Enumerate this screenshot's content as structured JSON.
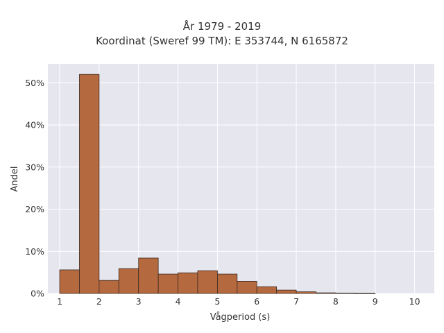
{
  "chart_data": {
    "type": "bar",
    "title": "År 1979 - 2019",
    "subtitle": "Koordinat (Sweref 99 TM): E 353744, N 6165872",
    "xlabel": "Vågperiod (s)",
    "ylabel": "Andel",
    "xlim": [
      0.7,
      10.5
    ],
    "ylim": [
      0,
      54.5
    ],
    "xticks": [
      1,
      2,
      3,
      4,
      5,
      6,
      7,
      8,
      9,
      10
    ],
    "yticks": [
      0,
      10,
      20,
      30,
      40,
      50
    ],
    "ytick_suffix": "%",
    "bin_width": 0.5,
    "bins": [
      {
        "x0": 1.0,
        "value": 5.6
      },
      {
        "x0": 1.5,
        "value": 52.0
      },
      {
        "x0": 2.0,
        "value": 3.1
      },
      {
        "x0": 2.5,
        "value": 5.9
      },
      {
        "x0": 3.0,
        "value": 8.4
      },
      {
        "x0": 3.5,
        "value": 4.6
      },
      {
        "x0": 4.0,
        "value": 4.9
      },
      {
        "x0": 4.5,
        "value": 5.4
      },
      {
        "x0": 5.0,
        "value": 4.6
      },
      {
        "x0": 5.5,
        "value": 2.9
      },
      {
        "x0": 6.0,
        "value": 1.6
      },
      {
        "x0": 6.5,
        "value": 0.8
      },
      {
        "x0": 7.0,
        "value": 0.4
      },
      {
        "x0": 7.5,
        "value": 0.15
      },
      {
        "x0": 8.0,
        "value": 0.1
      },
      {
        "x0": 8.5,
        "value": 0.05
      }
    ],
    "grid": true,
    "colors": {
      "bar_fill": "#b5693f",
      "bar_stroke": "#3a2a20",
      "plot_bg": "#e6e6ef",
      "grid": "#ffffff"
    }
  }
}
